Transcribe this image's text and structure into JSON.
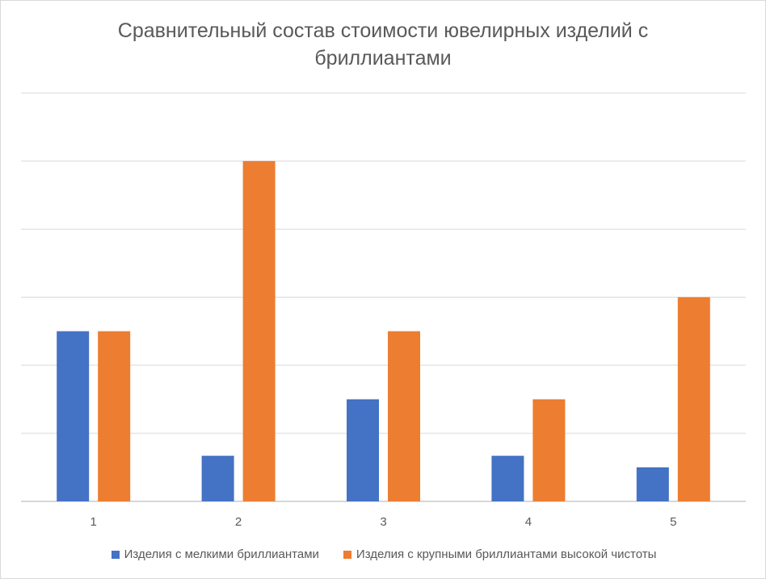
{
  "chart_data": {
    "type": "bar",
    "title": "Сравнительный состав стоимости ювелирных изделий с бриллиантами",
    "xlabel": "",
    "ylabel": "",
    "categories": [
      "1",
      "2",
      "3",
      "4",
      "5"
    ],
    "series": [
      {
        "name": "Изделия с мелкими бриллиантами",
        "color": "#4472C4",
        "values": [
          2.5,
          0.67,
          1.5,
          0.67,
          0.5
        ]
      },
      {
        "name": "Изделия с крупными бриллиантами высокой чистоты",
        "color": "#ED7D31",
        "values": [
          2.5,
          5,
          2.5,
          1.5,
          3
        ]
      }
    ],
    "ylim": [
      0,
      6
    ],
    "y_tick_labels_shown": false,
    "gridlines": true,
    "legend_position": "bottom"
  }
}
